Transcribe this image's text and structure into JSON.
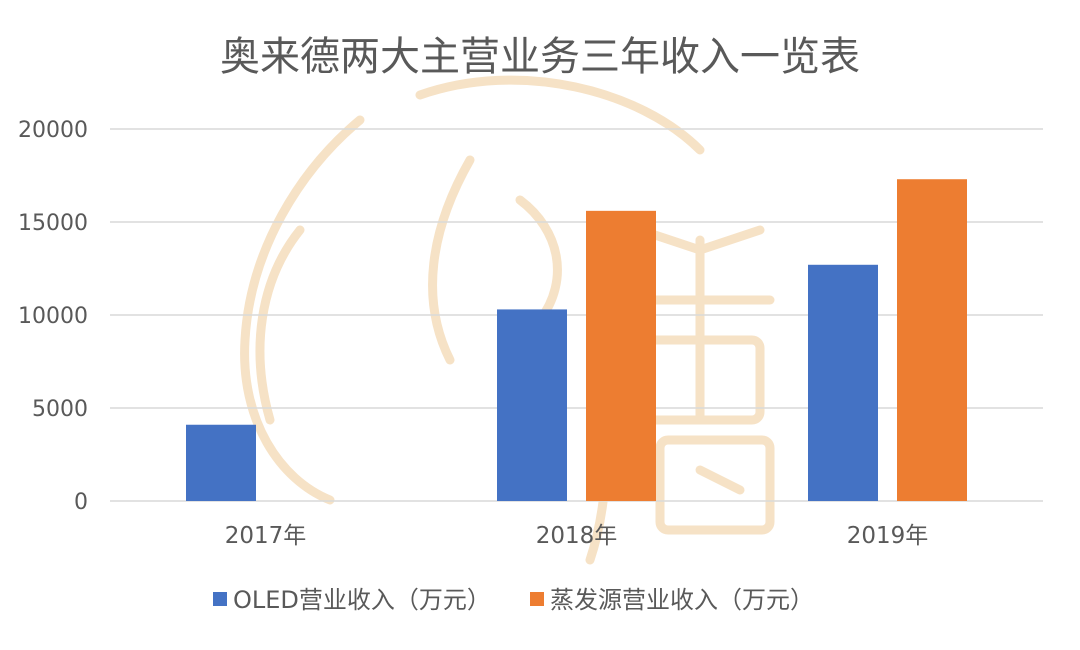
{
  "chart_data": {
    "type": "bar",
    "title": "奥来德两大主营业务三年收入一览表",
    "xlabel": "",
    "ylabel": "",
    "categories": [
      "2017年",
      "2018年",
      "2019年"
    ],
    "series": [
      {
        "name": "OLED营业收入（万元）",
        "values": [
          4100,
          10300,
          12700
        ],
        "color": "#4472c4"
      },
      {
        "name": "蒸发源营业收入（万元）",
        "values": [
          null,
          15600,
          17300
        ],
        "color": "#ed7d31"
      }
    ],
    "yticks": [
      0,
      5000,
      10000,
      15000,
      20000
    ],
    "ylim": [
      0,
      20000
    ],
    "grid": true,
    "legend_position": "bottom"
  }
}
